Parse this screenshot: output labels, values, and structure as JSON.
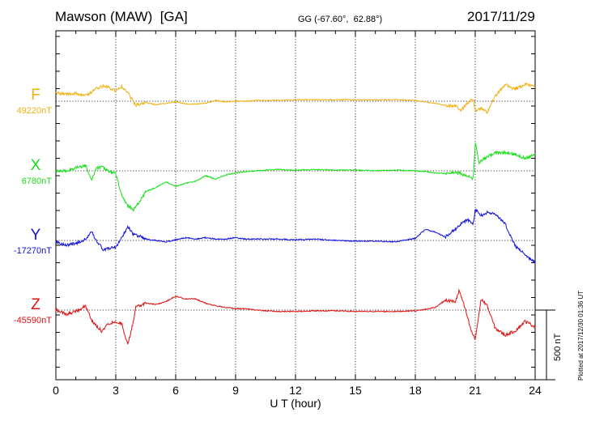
{
  "header": {
    "station": "Mawson (MAW)  [GA]",
    "coords": "GG (-67.60°,  62.88°)",
    "date": "2017/11/29"
  },
  "plotted_note": "Plotted at 2017/12/30 01:36 UT",
  "scale_label": "500 nT",
  "chart_data": {
    "type": "line",
    "xlabel": "U T (hour)",
    "xlim": [
      0,
      24
    ],
    "xticks": [
      "0",
      "3",
      "6",
      "9",
      "12",
      "15",
      "18",
      "21",
      "24"
    ],
    "scale_bar_nT": 500,
    "colors": {
      "F": "#f0b010",
      "X": "#18e018",
      "Y": "#1010e0",
      "Z": "#e01010"
    },
    "series": [
      {
        "name": "F",
        "baseline_label": "49220nT",
        "x": [
          0,
          0.5,
          1,
          1.5,
          1.8,
          2,
          2.4,
          2.7,
          3,
          3.3,
          3.6,
          3.8,
          4,
          4.5,
          5,
          5.5,
          6,
          6.5,
          7,
          7.5,
          8,
          8.5,
          9,
          9.5,
          10,
          11,
          12,
          13,
          14,
          15,
          16,
          17,
          18,
          18.5,
          19,
          19.5,
          20,
          20.3,
          20.6,
          20.9,
          21,
          21.3,
          21.6,
          22,
          22.5,
          23,
          23.5,
          24
        ],
        "values": [
          60,
          50,
          55,
          40,
          65,
          90,
          110,
          95,
          70,
          105,
          65,
          15,
          -30,
          -10,
          -25,
          -15,
          -5,
          -20,
          -20,
          -15,
          5,
          -5,
          0,
          0,
          5,
          5,
          10,
          10,
          10,
          10,
          10,
          10,
          5,
          -5,
          -15,
          -30,
          -35,
          -65,
          -15,
          20,
          -70,
          -50,
          -80,
          35,
          120,
          85,
          120,
          105
        ]
      },
      {
        "name": "X",
        "baseline_label": "6780nT",
        "x": [
          0,
          0.5,
          1,
          1.5,
          1.8,
          2,
          2.3,
          2.6,
          3,
          3.3,
          3.6,
          3.9,
          4.2,
          4.5,
          5,
          5.5,
          6,
          6.5,
          7,
          7.5,
          8,
          8.5,
          9,
          9.5,
          10,
          11,
          12,
          13,
          14,
          15,
          16,
          17,
          18,
          18.5,
          19,
          19.5,
          20,
          20.3,
          20.6,
          20.9,
          21,
          21.2,
          21.5,
          22,
          22.5,
          23,
          23.5,
          24
        ],
        "values": [
          0,
          0,
          20,
          40,
          -70,
          15,
          30,
          0,
          -20,
          -180,
          -250,
          -280,
          -220,
          -150,
          -120,
          -80,
          -110,
          -90,
          -75,
          -35,
          -60,
          -30,
          -15,
          -5,
          0,
          10,
          5,
          10,
          5,
          5,
          0,
          5,
          0,
          -5,
          -15,
          -20,
          -10,
          -20,
          -40,
          -60,
          200,
          60,
          90,
          130,
          130,
          120,
          90,
          120
        ]
      },
      {
        "name": "Y",
        "baseline_label": "-17270nT",
        "x": [
          0,
          0.5,
          1,
          1.5,
          1.8,
          2,
          2.4,
          2.8,
          3,
          3.3,
          3.6,
          3.9,
          4.2,
          4.5,
          5,
          5.5,
          6,
          6.5,
          7,
          7.5,
          8,
          8.5,
          9,
          9.5,
          10,
          11,
          12,
          13,
          14,
          15,
          16,
          17,
          18,
          18.5,
          19,
          19.5,
          20,
          20.3,
          20.6,
          20.9,
          21,
          21.3,
          21.6,
          22,
          22.5,
          23,
          23.5,
          24
        ],
        "values": [
          -10,
          -35,
          -20,
          10,
          60,
          0,
          -70,
          -50,
          -50,
          20,
          100,
          40,
          30,
          10,
          0,
          -10,
          5,
          20,
          10,
          20,
          10,
          10,
          20,
          10,
          10,
          10,
          5,
          10,
          0,
          -5,
          -5,
          -10,
          15,
          80,
          60,
          25,
          80,
          120,
          150,
          120,
          220,
          180,
          200,
          190,
          120,
          -40,
          -100,
          -160
        ]
      },
      {
        "name": "Z",
        "baseline_label": "-45590nT",
        "x": [
          0,
          0.5,
          1,
          1.5,
          1.8,
          2,
          2.3,
          2.6,
          3,
          3.3,
          3.6,
          3.9,
          4,
          4.5,
          5,
          5.5,
          6,
          6.5,
          7,
          7.5,
          8,
          8.5,
          9,
          9.5,
          10,
          11,
          12,
          13,
          14,
          15,
          16,
          17,
          18,
          18.5,
          19,
          19.5,
          20,
          20.2,
          20.5,
          20.8,
          21,
          21.3,
          21.6,
          22,
          22.5,
          23,
          23.5,
          24
        ],
        "values": [
          0,
          -30,
          -10,
          30,
          -80,
          -110,
          -150,
          -100,
          -80,
          -100,
          -250,
          -70,
          20,
          50,
          40,
          60,
          100,
          80,
          80,
          50,
          30,
          20,
          10,
          10,
          0,
          -10,
          -10,
          -5,
          -5,
          -10,
          -10,
          -10,
          -5,
          5,
          20,
          70,
          60,
          140,
          5,
          -150,
          -210,
          80,
          30,
          -130,
          -180,
          -150,
          -80,
          -120
        ]
      }
    ]
  }
}
